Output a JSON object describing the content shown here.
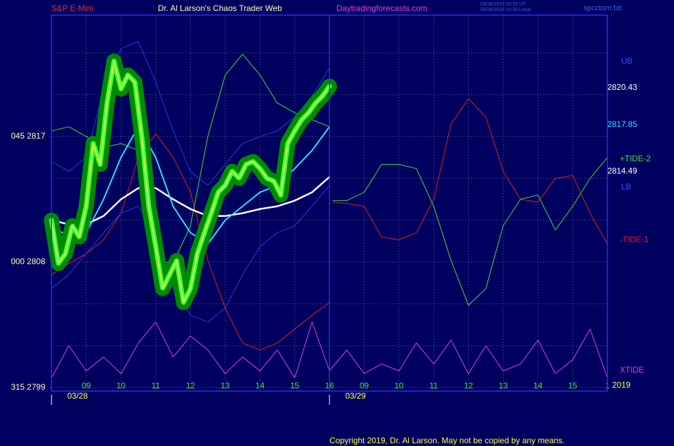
{
  "chart_data": {
    "type": "line",
    "header": {
      "symbol": "S&P E-Mini",
      "title": "Dr. Al Larson's Chaos Trader Web",
      "site": "Daytradingforecasts.com",
      "stamp_ut": "03/28/2019 20:20 UT",
      "stamp_local": "03/28/2019 15:20 Local",
      "file": "spcctom.txt"
    },
    "copyright": "Copyright 2019, Dr. Al Larson. May not be copied by any means.",
    "right_labels": {
      "ub": "UB",
      "ub_price": "2820.43",
      "ma_price": "2817.85",
      "tide2": "+TIDE-2",
      "last_price": "2814.49",
      "lb": "LB",
      "tide1": "-TIDE-1",
      "xtide": "XTIDE",
      "year": "2019"
    },
    "date_labels": [
      {
        "value": 0.75,
        "label": "03/28"
      },
      {
        "value": 8.75,
        "label": "03/29"
      }
    ],
    "xlim": [
      0,
      16
    ],
    "xticks": [
      {
        "value": 1,
        "label": "09"
      },
      {
        "value": 2,
        "label": "10"
      },
      {
        "value": 3,
        "label": "11"
      },
      {
        "value": 4,
        "label": "12"
      },
      {
        "value": 5,
        "label": "13"
      },
      {
        "value": 6,
        "label": "14"
      },
      {
        "value": 7,
        "label": "15"
      },
      {
        "value": 8,
        "label": "16"
      },
      {
        "value": 9,
        "label": "09"
      },
      {
        "value": 10,
        "label": "10"
      },
      {
        "value": 11,
        "label": "11"
      },
      {
        "value": 12,
        "label": "12"
      },
      {
        "value": 13,
        "label": "13"
      },
      {
        "value": 14,
        "label": "14"
      },
      {
        "value": 15,
        "label": "15"
      },
      {
        "value": 16,
        "label": "1"
      }
    ],
    "ylim": [
      2798.75,
      2825.7
    ],
    "yticks": [
      {
        "value": 2799,
        "label": "315  2799"
      },
      {
        "value": 2808,
        "label": "000  2808"
      },
      {
        "value": 2817,
        "label": "045  2817"
      }
    ],
    "ygrid": [
      2799,
      2802,
      2805,
      2808,
      2811,
      2814,
      2817,
      2820,
      2823
    ],
    "grid": true,
    "background": "#00005e",
    "series": [
      {
        "name": "-TIDE-1",
        "color": "#e02020",
        "x": [
          0,
          0.5,
          1,
          1.5,
          2,
          2.5,
          3,
          3.5,
          4,
          4.5,
          5,
          5.5,
          6,
          6.5,
          7,
          7.5,
          8,
          8.05,
          8.1,
          8.5,
          9,
          9.5,
          10,
          10.5,
          11,
          11.5,
          12,
          12.5,
          13,
          13.5,
          14,
          14.5,
          15,
          15.5,
          16
        ],
        "values": [
          2807.1,
          2807.9,
          2808.6,
          2809.6,
          2811.5,
          2815.5,
          2817.2,
          2815.5,
          2813.0,
          2808.1,
          2804.7,
          2802.2,
          2801.7,
          2802.2,
          2803.2,
          2804.2,
          2805.1,
          null,
          2812.3,
          2812.2,
          2812.0,
          2809.8,
          2809.6,
          2810.1,
          2812.5,
          2817.9,
          2819.7,
          2818.4,
          2814.5,
          2812.5,
          2812.3,
          2814.0,
          2814.2,
          2811.5,
          2809.3
        ]
      },
      {
        "name": "+TIDE-2",
        "color": "#40e040",
        "x": [
          0,
          0.5,
          1,
          1.5,
          2,
          2.5,
          3,
          3.5,
          4,
          4.5,
          5,
          5.5,
          6,
          6.5,
          7,
          7.5,
          8,
          8.05,
          8.1,
          8.5,
          9,
          9.5,
          10,
          10.5,
          11,
          11.5,
          12,
          12.5,
          13,
          13.5,
          14,
          14.5,
          15,
          15.5,
          16
        ],
        "values": [
          2817.4,
          2817.7,
          2817.0,
          2816.2,
          2816.5,
          2816.0,
          2808.1,
          2807.9,
          2810.6,
          2817.0,
          2821.4,
          2822.9,
          2821.4,
          2819.4,
          2818.7,
          2818.2,
          2817.7,
          null,
          2812.4,
          2812.4,
          2813.0,
          2815.0,
          2815.0,
          2814.7,
          2812.0,
          2808.1,
          2804.9,
          2806.1,
          2810.6,
          2812.5,
          2812.8,
          2810.3,
          2812.0,
          2814.0,
          2815.5
        ]
      },
      {
        "name": "XTIDE",
        "color": "#e040e0",
        "x": [
          0,
          0.5,
          1,
          1.5,
          2,
          2.5,
          3,
          3.5,
          4,
          4.5,
          5,
          5.5,
          6,
          6.5,
          7,
          7.5,
          8,
          8.5,
          9,
          9.5,
          10,
          10.5,
          11,
          11.5,
          12,
          12.5,
          13,
          13.5,
          14,
          14.5,
          15,
          15.5,
          16
        ],
        "values": [
          2799.7,
          2802.0,
          2800.2,
          2801.2,
          2800.0,
          2802.2,
          2803.7,
          2801.2,
          2802.7,
          2801.7,
          2800.0,
          2801.2,
          2800.2,
          2801.7,
          2799.7,
          2803.7,
          2800.2,
          2801.7,
          2800.0,
          2800.7,
          2800.2,
          2802.2,
          2800.7,
          2802.4,
          2800.0,
          2802.0,
          2800.2,
          2800.7,
          2802.4,
          2800.0,
          2801.0,
          2803.2,
          2799.7
        ]
      },
      {
        "name": "UB",
        "color": "#2040e0",
        "x": [
          0,
          0.5,
          1,
          1.5,
          2,
          2.5,
          3,
          3.5,
          4,
          4.5,
          5,
          5.5,
          6,
          6.5,
          7,
          7.5,
          8
        ],
        "values": [
          2815.2,
          2814.5,
          2815.5,
          2820.4,
          2823.3,
          2823.8,
          2820.9,
          2817.4,
          2814.5,
          2813.5,
          2815.0,
          2816.5,
          2817.0,
          2817.4,
          2818.4,
          2819.9,
          2821.9
        ]
      },
      {
        "name": "LB",
        "color": "#2040e0",
        "x": [
          0,
          0.5,
          1,
          1.5,
          2,
          2.5,
          3,
          3.5,
          4,
          4.5,
          5,
          5.5,
          6,
          6.5,
          7,
          7.5,
          8
        ],
        "values": [
          2806.1,
          2807.1,
          2808.6,
          2810.1,
          2811.5,
          2812.0,
          2810.1,
          2806.1,
          2804.2,
          2803.7,
          2804.7,
          2807.1,
          2809.1,
          2810.1,
          2810.6,
          2812.0,
          2813.5
        ]
      },
      {
        "color": "#ffffff",
        "width": 2.5,
        "x": [
          0,
          0.5,
          1,
          1.5,
          2,
          2.5,
          3,
          3.5,
          4,
          4.5,
          5,
          5.5,
          6,
          6.5,
          7,
          7.5,
          8
        ],
        "values": [
          2811.0,
          2810.7,
          2810.7,
          2811.3,
          2812.5,
          2813.3,
          2813.3,
          2812.5,
          2811.8,
          2811.3,
          2811.3,
          2811.5,
          2811.8,
          2812.0,
          2812.4,
          2813.0,
          2814.1
        ]
      },
      {
        "color": "#30e0ff",
        "width": 2,
        "x": [
          0,
          0.5,
          1,
          1.5,
          2,
          2.5,
          3,
          3.5,
          4,
          4.5,
          5,
          5.5,
          6,
          6.5,
          7,
          7.5,
          8
        ],
        "values": [
          2810.6,
          2809.8,
          2810.1,
          2812.5,
          2815.5,
          2817.7,
          2815.5,
          2812.0,
          2810.1,
          2809.3,
          2811.0,
          2812.0,
          2813.0,
          2813.5,
          2814.7,
          2816.0,
          2817.7
        ]
      },
      {
        "color": "#ffff40",
        "width": 1.5,
        "glow": "#008a00",
        "inner": "#40ff40",
        "x": [
          0,
          0.2,
          0.4,
          0.6,
          0.8,
          1,
          1.2,
          1.4,
          1.6,
          1.8,
          2,
          2.2,
          2.4,
          2.6,
          2.8,
          3,
          3.2,
          3.4,
          3.6,
          3.8,
          4,
          4.2,
          4.4,
          4.6,
          4.8,
          5,
          5.2,
          5.4,
          5.6,
          5.8,
          6,
          6.2,
          6.4,
          6.6,
          6.8,
          7,
          7.2,
          7.4,
          7.6,
          7.8,
          8
        ],
        "values": [
          2811.0,
          2807.9,
          2808.6,
          2810.6,
          2809.8,
          2812.0,
          2816.5,
          2815.0,
          2819.4,
          2822.4,
          2820.4,
          2821.4,
          2820.9,
          2817.0,
          2812.0,
          2809.1,
          2806.1,
          2807.1,
          2808.1,
          2805.1,
          2806.1,
          2808.6,
          2810.1,
          2811.5,
          2813.0,
          2813.5,
          2814.5,
          2814.0,
          2815.0,
          2815.2,
          2814.7,
          2814.0,
          2813.8,
          2812.8,
          2816.5,
          2817.4,
          2818.2,
          2818.7,
          2819.4,
          2819.9,
          2820.6
        ]
      }
    ]
  }
}
